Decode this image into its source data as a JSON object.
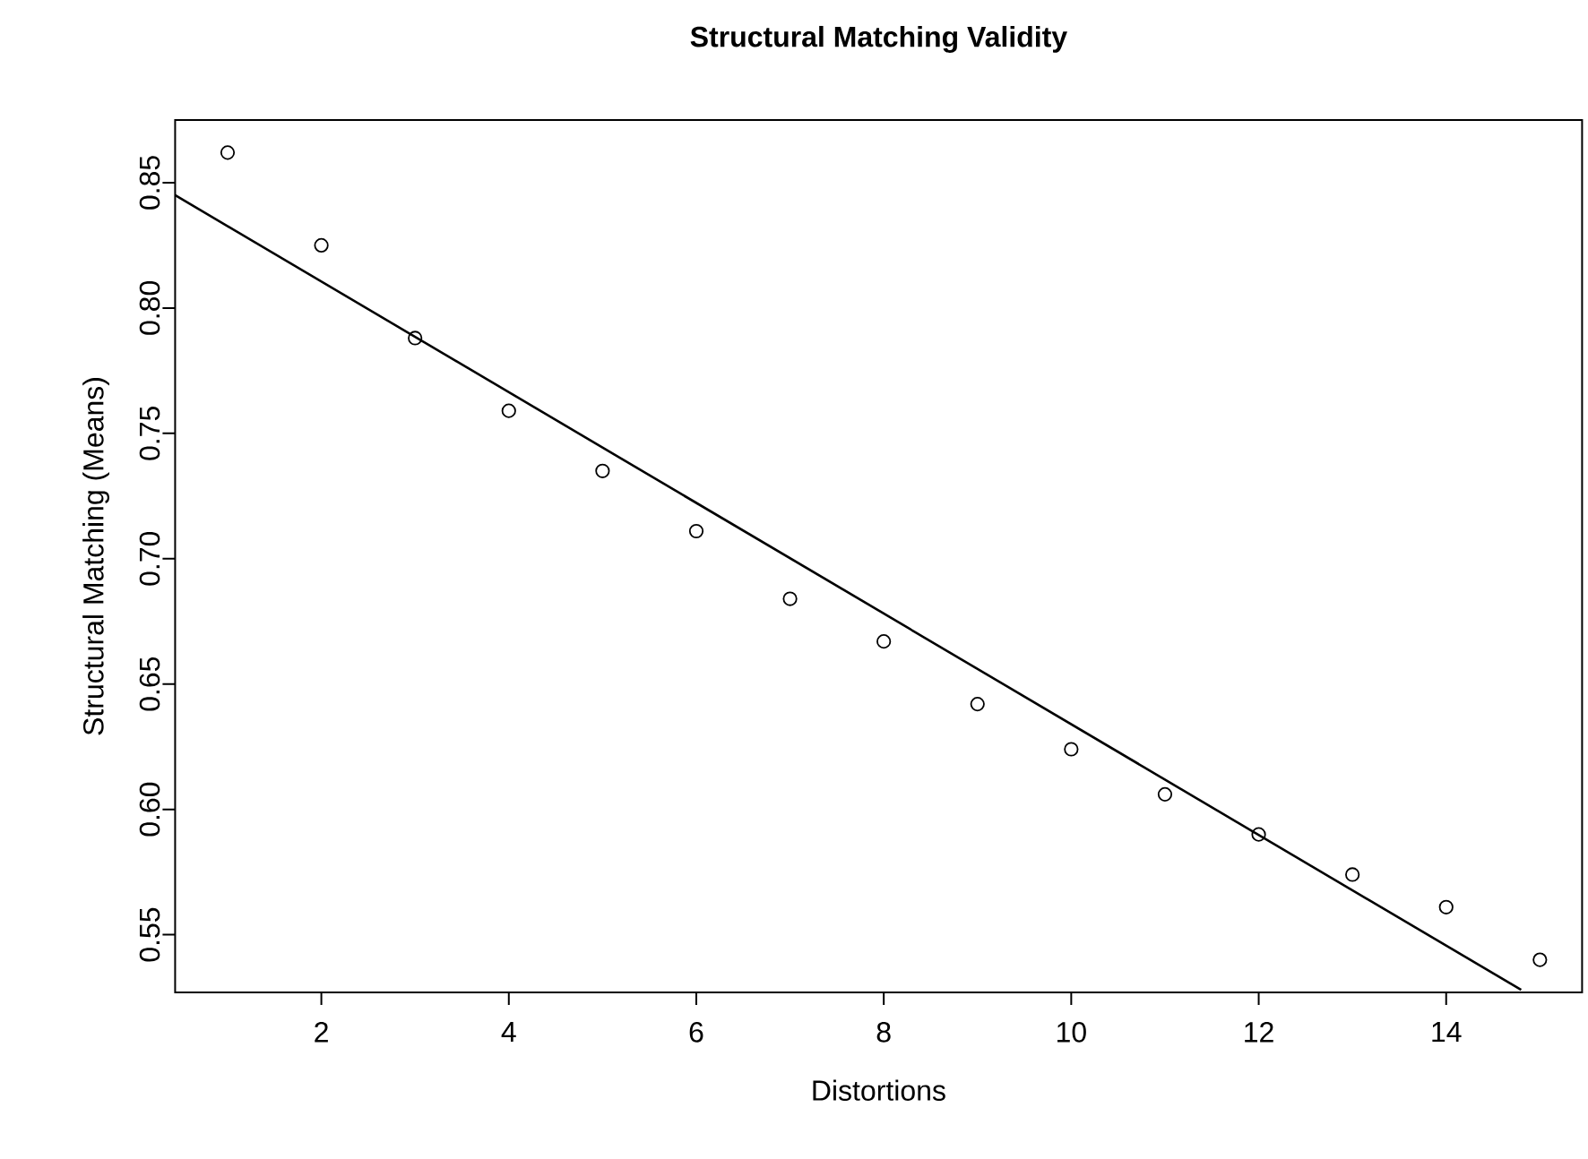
{
  "chart_data": {
    "type": "scatter",
    "title": "Structural Matching Validity",
    "xlabel": "Distortions",
    "ylabel": "Structural Matching (Means)",
    "xlim": [
      0.44,
      15.45
    ],
    "ylim": [
      0.527,
      0.875
    ],
    "xticks": [
      2,
      4,
      6,
      8,
      10,
      12,
      14
    ],
    "yticks": [
      {
        "value": 0.55,
        "label": "0.55"
      },
      {
        "value": 0.6,
        "label": "0.60"
      },
      {
        "value": 0.65,
        "label": "0.65"
      },
      {
        "value": 0.7,
        "label": "0.70"
      },
      {
        "value": 0.75,
        "label": "0.75"
      },
      {
        "value": 0.8,
        "label": "0.80"
      },
      {
        "value": 0.85,
        "label": "0.85"
      }
    ],
    "series": [
      {
        "marker": "circle",
        "color": "#000000",
        "x": [
          1,
          2,
          3,
          4,
          5,
          6,
          7,
          8,
          9,
          10,
          11,
          12,
          13,
          14,
          15
        ],
        "values": [
          0.862,
          0.825,
          0.788,
          0.759,
          0.735,
          0.711,
          0.684,
          0.667,
          0.642,
          0.624,
          0.606,
          0.59,
          0.574,
          0.561,
          0.54
        ]
      },
      {
        "type": "line",
        "marker": "none",
        "line_style": "solid",
        "color": "#000000",
        "x": [
          0.44,
          14.8
        ],
        "values": [
          0.845,
          0.528
        ]
      }
    ]
  }
}
